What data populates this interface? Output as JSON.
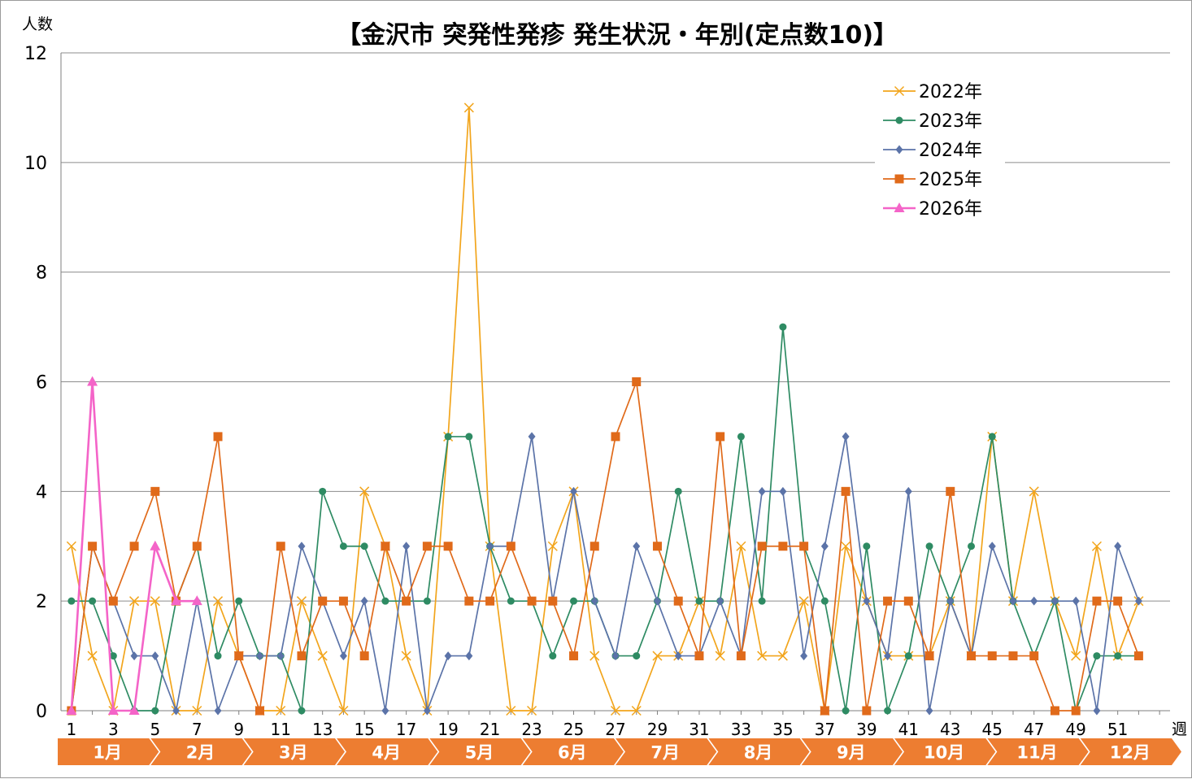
{
  "chart_data": {
    "type": "line",
    "title": "【金沢市 突発性発疹 発生状況・年別(定点数10)】",
    "ylabel": "人数",
    "xlabel": "週",
    "ylim": [
      0,
      12
    ],
    "yticks": [
      "0",
      "2",
      "4",
      "6",
      "8",
      "10",
      "12"
    ],
    "xlim": [
      1,
      53
    ],
    "xticks": [
      "1",
      "3",
      "5",
      "7",
      "9",
      "11",
      "13",
      "15",
      "17",
      "19",
      "21",
      "23",
      "25",
      "27",
      "29",
      "31",
      "33",
      "35",
      "37",
      "39",
      "41",
      "43",
      "45",
      "47",
      "49",
      "51"
    ],
    "grid": true,
    "legend_position": "top-right",
    "months": [
      "1月",
      "2月",
      "3月",
      "4月",
      "5月",
      "6月",
      "7月",
      "8月",
      "9月",
      "10月",
      "11月",
      "12月"
    ],
    "series": [
      {
        "name": "2022年",
        "color": "#f2a51c",
        "marker": "x",
        "values": [
          3,
          1,
          0,
          2,
          2,
          0,
          0,
          2,
          1,
          0,
          0,
          2,
          1,
          0,
          4,
          3,
          1,
          0,
          5,
          11,
          3,
          0,
          0,
          3,
          4,
          1,
          0,
          0,
          1,
          1,
          2,
          1,
          3,
          1,
          1,
          2,
          0,
          3,
          2,
          1,
          1,
          1,
          2,
          1,
          5,
          2,
          4,
          2,
          1,
          3,
          1,
          2
        ]
      },
      {
        "name": "2023年",
        "color": "#2e8b63",
        "marker": "circle",
        "values": [
          2,
          2,
          1,
          0,
          0,
          2,
          3,
          1,
          2,
          1,
          1,
          0,
          4,
          3,
          3,
          2,
          2,
          2,
          5,
          5,
          3,
          2,
          2,
          1,
          2,
          2,
          1,
          1,
          2,
          4,
          2,
          2,
          5,
          2,
          7,
          3,
          2,
          0,
          3,
          0,
          1,
          3,
          2,
          3,
          5,
          2,
          1,
          2,
          0,
          1,
          1,
          1
        ]
      },
      {
        "name": "2024年",
        "color": "#5b73a8",
        "marker": "diamond",
        "values": [
          0,
          3,
          2,
          1,
          1,
          0,
          2,
          0,
          1,
          1,
          1,
          3,
          2,
          1,
          2,
          0,
          3,
          0,
          1,
          1,
          3,
          3,
          5,
          2,
          4,
          2,
          1,
          3,
          2,
          1,
          1,
          2,
          1,
          4,
          4,
          1,
          3,
          5,
          2,
          1,
          4,
          0,
          2,
          1,
          3,
          2,
          2,
          2,
          2,
          0,
          3,
          2
        ]
      },
      {
        "name": "2025年",
        "color": "#e06a1a",
        "marker": "square",
        "values": [
          0,
          3,
          2,
          3,
          4,
          2,
          3,
          5,
          1,
          0,
          3,
          1,
          2,
          2,
          1,
          3,
          2,
          3,
          3,
          2,
          2,
          3,
          2,
          2,
          1,
          3,
          5,
          6,
          3,
          2,
          1,
          5,
          1,
          3,
          3,
          3,
          0,
          4,
          0,
          2,
          2,
          1,
          4,
          1,
          1,
          1,
          1,
          0,
          0,
          2,
          2,
          1
        ]
      },
      {
        "name": "2026年",
        "color": "#f464c8",
        "marker": "triangle",
        "values": [
          0,
          6,
          0,
          0,
          3,
          2,
          2
        ]
      }
    ]
  }
}
